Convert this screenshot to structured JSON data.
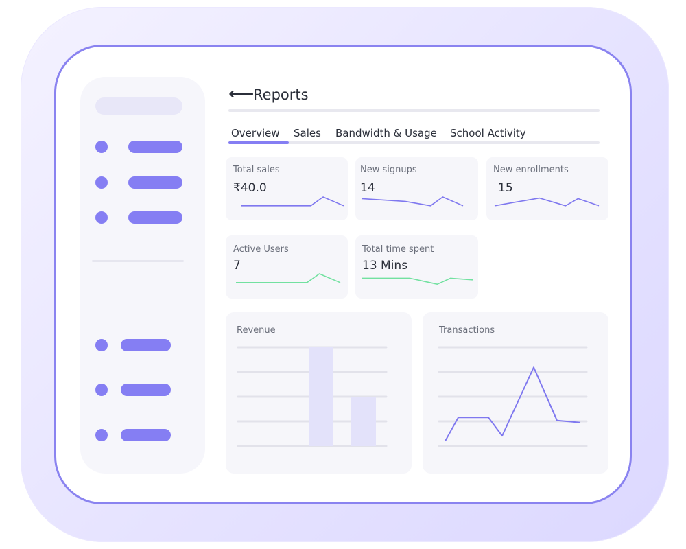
{
  "header": {
    "back_icon": "back-arrow-icon",
    "back_glyph": "⟵",
    "title": "Reports"
  },
  "tabs": [
    {
      "label": "Overview",
      "active": true
    },
    {
      "label": "Sales",
      "active": false
    },
    {
      "label": "Bandwidth & Usage",
      "active": false
    },
    {
      "label": "School Activity",
      "active": false
    }
  ],
  "stats": [
    {
      "label": "Total sales",
      "value": "₹40.0",
      "trend": [
        0.2,
        0.2,
        0.2,
        1.0,
        0.2
      ],
      "color": "#7f78ef"
    },
    {
      "label": "New signups",
      "value": "14",
      "trend": [
        0.85,
        0.6,
        0.2,
        1.0,
        0.2
      ],
      "color": "#7f78ef"
    },
    {
      "label": "New enrollments",
      "value": "15",
      "trend": [
        0.2,
        0.9,
        0.2,
        0.85,
        0.2
      ],
      "color": "#7f78ef"
    },
    {
      "label": "Active Users",
      "value": "7",
      "trend": [
        0.2,
        0.2,
        0.2,
        1.0,
        0.2
      ],
      "color": "#72e1a0"
    },
    {
      "label": "Total time spent",
      "value": "13 Mins",
      "trend": [
        0.85,
        0.85,
        0.3,
        0.85,
        0.7
      ],
      "color": "#72e1a0"
    }
  ],
  "chart_data": [
    {
      "type": "bar",
      "title": "Revenue",
      "values": [
        1.0,
        0.5
      ],
      "ylim": [
        0,
        1
      ],
      "grid": true,
      "bar_color": "#e3e2fa"
    },
    {
      "type": "line",
      "title": "Transactions",
      "values": [
        0.05,
        0.28,
        0.28,
        0.28,
        0.1,
        0.77,
        0.25,
        0.23
      ],
      "ylim": [
        0,
        1
      ],
      "grid": true,
      "line_color": "#7f78ef"
    }
  ],
  "colors": {
    "accent": "#857ef3",
    "positive": "#72e1a0",
    "frame": "#8a83f0"
  }
}
